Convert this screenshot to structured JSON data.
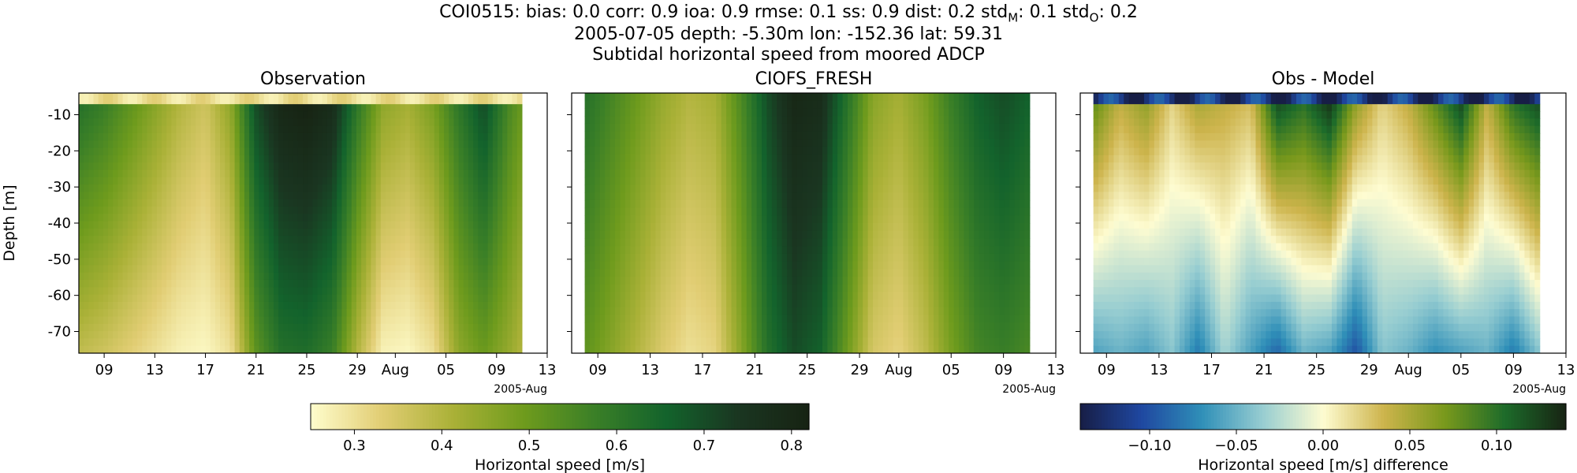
{
  "title": {
    "line1_prefix": "COI0515: bias: 0.0  corr: 0.9  ioa: 0.9  rmse: 0.1  ss: 0.9  dist: 0.2  std",
    "line1_sub_m": "M",
    "line1_mid": ": 0.1  std",
    "line1_sub_o": "O",
    "line1_end": ": 0.2",
    "line2": "2005-07-05 depth: -5.30m lon: -152.36 lat: 59.31",
    "line3": "Subtidal horizontal speed from moored ADCP"
  },
  "chart_data": [
    {
      "type": "heatmap",
      "title": "Observation",
      "ylabel": "Depth [m]",
      "xlabel": "",
      "x_tick_labels": [
        "09",
        "13",
        "17",
        "21",
        "25",
        "29",
        "Aug",
        "05",
        "09",
        "13"
      ],
      "x_offset_label": "2005-Aug",
      "x_range_days_since_jul1": [
        6,
        43
      ],
      "data_extent_days_since_jul1": [
        6,
        41
      ],
      "y_tick_labels": [
        "-10",
        "-20",
        "-30",
        "-40",
        "-50",
        "-60",
        "-70"
      ],
      "ylim": [
        -76,
        -4
      ],
      "colormap": "speed",
      "vmin": 0.25,
      "vmax": 0.82,
      "surface_band": {
        "depth_top": -4,
        "depth_bottom": -7,
        "approx_value": 0.3
      },
      "column_profiles": {
        "days": [
          6,
          8,
          10,
          12,
          14,
          16,
          18,
          20,
          22,
          24,
          26,
          28,
          30,
          32,
          34,
          36,
          38,
          40,
          41
        ],
        "near_surface": [
          0.62,
          0.58,
          0.52,
          0.46,
          0.4,
          0.36,
          0.45,
          0.7,
          0.8,
          0.82,
          0.78,
          0.6,
          0.45,
          0.42,
          0.48,
          0.6,
          0.7,
          0.55,
          0.5
        ],
        "near_bottom": [
          0.38,
          0.36,
          0.33,
          0.3,
          0.27,
          0.26,
          0.3,
          0.52,
          0.62,
          0.63,
          0.58,
          0.4,
          0.27,
          0.26,
          0.3,
          0.45,
          0.5,
          0.44,
          0.4
        ]
      }
    },
    {
      "type": "heatmap",
      "title": "CIOFS_FRESH",
      "xlabel": "",
      "x_tick_labels": [
        "09",
        "13",
        "17",
        "21",
        "25",
        "29",
        "Aug",
        "05",
        "09",
        "13"
      ],
      "x_offset_label": "2005-Aug",
      "x_range_days_since_jul1": [
        6,
        43
      ],
      "data_extent_days_since_jul1": [
        7,
        41
      ],
      "ylim": [
        -76,
        -4
      ],
      "colormap": "speed",
      "vmin": 0.25,
      "vmax": 0.82,
      "column_profiles": {
        "days": [
          7,
          9,
          11,
          13,
          15,
          17,
          19,
          21,
          23,
          25,
          27,
          29,
          31,
          33,
          35,
          37,
          39,
          41
        ],
        "near_surface": [
          0.62,
          0.56,
          0.5,
          0.44,
          0.4,
          0.42,
          0.55,
          0.7,
          0.8,
          0.78,
          0.62,
          0.46,
          0.42,
          0.48,
          0.58,
          0.66,
          0.7,
          0.66
        ],
        "near_bottom": [
          0.52,
          0.46,
          0.4,
          0.34,
          0.3,
          0.32,
          0.46,
          0.62,
          0.7,
          0.66,
          0.5,
          0.35,
          0.32,
          0.38,
          0.48,
          0.56,
          0.58,
          0.55
        ]
      }
    },
    {
      "type": "heatmap",
      "title": "Obs - Model",
      "xlabel": "",
      "x_tick_labels": [
        "09",
        "13",
        "17",
        "21",
        "25",
        "29",
        "Aug",
        "05",
        "09",
        "13"
      ],
      "x_offset_label": "2005-Aug",
      "x_range_days_since_jul1": [
        6,
        43
      ],
      "data_extent_days_since_jul1": [
        7,
        41
      ],
      "ylim": [
        -76,
        -4
      ],
      "colormap": "diff",
      "vmin": -0.14,
      "vmax": 0.14,
      "surface_band": {
        "depth_top": -4,
        "depth_bottom": -7,
        "approx_value": -0.12
      },
      "column_profiles": {
        "days": [
          7,
          9,
          11,
          13,
          15,
          17,
          19,
          21,
          23,
          25,
          27,
          29,
          31,
          33,
          35,
          37,
          39,
          41
        ],
        "near_surface": [
          0.08,
          0.04,
          0.06,
          0.02,
          0.05,
          0.04,
          0.03,
          0.12,
          0.1,
          0.13,
          0.06,
          0.02,
          0.04,
          0.08,
          0.12,
          0.04,
          0.1,
          0.12
        ],
        "near_bottom": [
          -0.06,
          -0.05,
          -0.06,
          -0.04,
          -0.08,
          -0.03,
          -0.06,
          -0.09,
          -0.05,
          -0.06,
          -0.1,
          -0.04,
          -0.05,
          -0.07,
          -0.06,
          -0.05,
          -0.08,
          -0.04
        ]
      }
    }
  ],
  "colorbars": [
    {
      "label": "Horizontal speed [m/s]",
      "tick_labels": [
        "0.3",
        "0.4",
        "0.5",
        "0.6",
        "0.7",
        "0.8"
      ],
      "tick_values": [
        0.3,
        0.4,
        0.5,
        0.6,
        0.7,
        0.8
      ],
      "vmin": 0.25,
      "vmax": 0.82,
      "colormap": "speed"
    },
    {
      "label": "Horizontal speed [m/s] difference",
      "tick_labels": [
        "−0.10",
        "−0.05",
        "0.00",
        "0.05",
        "0.10"
      ],
      "tick_values": [
        -0.1,
        -0.05,
        0.0,
        0.05,
        0.1
      ],
      "vmin": -0.14,
      "vmax": 0.14,
      "colormap": "diff"
    }
  ],
  "colormaps": {
    "speed": [
      "#fffdcd",
      "#e1cd73",
      "#aab137",
      "#6e9b1d",
      "#3a7f27",
      "#13632c",
      "#1a3621",
      "#172313"
    ],
    "diff": [
      "#171e46",
      "#1f47a0",
      "#2f8fb8",
      "#97cdd1",
      "#fefcd1",
      "#cdb44c",
      "#79991c",
      "#1d6b2a",
      "#172313"
    ]
  }
}
